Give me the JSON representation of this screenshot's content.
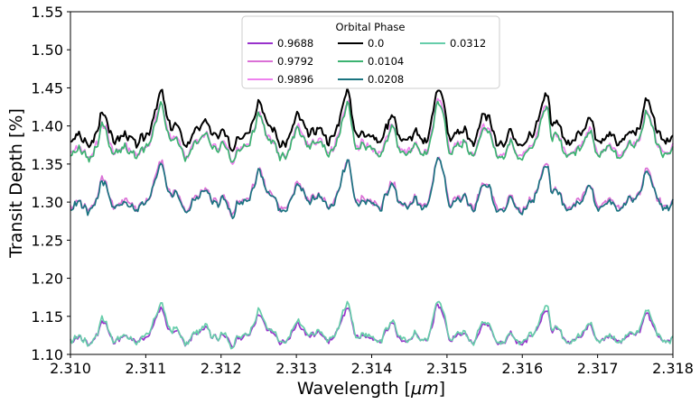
{
  "chart_data": {
    "type": "line",
    "xlabel_prefix": "Wavelength [",
    "xlabel_unit": "μm",
    "xlabel_suffix": "]",
    "ylabel": "Transit Depth [%]",
    "xlim": [
      2.31,
      2.318
    ],
    "ylim": [
      1.1,
      1.55
    ],
    "x_ticks": [
      "2.310",
      "2.311",
      "2.312",
      "2.313",
      "2.314",
      "2.315",
      "2.316",
      "2.317",
      "2.318"
    ],
    "y_ticks": [
      "1.10",
      "1.15",
      "1.20",
      "1.25",
      "1.30",
      "1.35",
      "1.40",
      "1.45",
      "1.50",
      "1.55"
    ],
    "grid": false,
    "legend": {
      "title": "Orbital Phase",
      "placement": "top-center",
      "columns": 3
    },
    "peaks": [
      {
        "x": 2.31045,
        "h": 0.45
      },
      {
        "x": 2.3112,
        "h": 1.0
      },
      {
        "x": 2.3118,
        "h": 0.4
      },
      {
        "x": 2.3125,
        "h": 0.9
      },
      {
        "x": 2.31305,
        "h": 0.45
      },
      {
        "x": 2.31368,
        "h": 0.9
      },
      {
        "x": 2.31428,
        "h": 0.45
      },
      {
        "x": 2.3149,
        "h": 0.95
      },
      {
        "x": 2.3155,
        "h": 0.45
      },
      {
        "x": 2.3163,
        "h": 0.95
      },
      {
        "x": 2.3169,
        "h": 0.45
      },
      {
        "x": 2.31765,
        "h": 0.85
      }
    ],
    "series": [
      {
        "name": "0.9688",
        "color": "#9932cc",
        "base": 1.125,
        "amp": 0.04,
        "seed": 11,
        "order": 3
      },
      {
        "name": "0.9792",
        "color": "#da70d6",
        "base": 1.3,
        "amp": 0.055,
        "seed": 12,
        "order": 0
      },
      {
        "name": "0.9896",
        "color": "#ee82ee",
        "base": 1.37,
        "amp": 0.06,
        "seed": 13,
        "order": 1
      },
      {
        "name": "0.0",
        "color": "#000000",
        "base": 1.385,
        "amp": 0.06,
        "seed": 14,
        "order": 4
      },
      {
        "name": "0.0104",
        "color": "#3cb371",
        "base": 1.368,
        "amp": 0.06,
        "seed": 15,
        "order": 2
      },
      {
        "name": "0.0208",
        "color": "#1a7480",
        "base": 1.298,
        "amp": 0.055,
        "seed": 16,
        "order": 5
      },
      {
        "name": "0.0312",
        "color": "#66cdaa",
        "base": 1.125,
        "amp": 0.045,
        "seed": 17,
        "order": 6
      }
    ]
  }
}
